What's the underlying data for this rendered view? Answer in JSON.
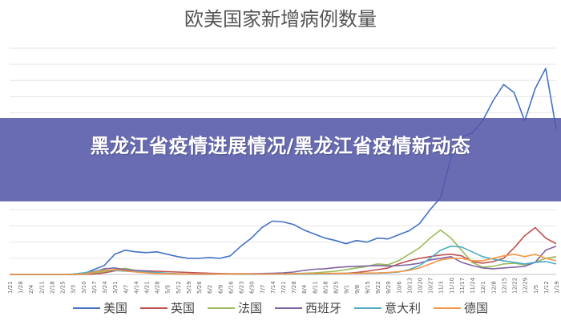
{
  "banner": {
    "text": "黑龙江省疫情进展情况/黑龙江省疫情新动态"
  },
  "chart_data": {
    "type": "line",
    "title": "欧美国家新增病例数量",
    "x": [
      "1/21",
      "1/28",
      "2/4",
      "2/11",
      "2/18",
      "2/25",
      "3/3",
      "3/10",
      "3/17",
      "3/24",
      "3/31",
      "4/7",
      "4/14",
      "4/21",
      "4/28",
      "5/5",
      "5/12",
      "5/19",
      "5/26",
      "6/2",
      "6/9",
      "6/16",
      "6/23",
      "6/30",
      "7/7",
      "7/14",
      "7/21",
      "7/28",
      "8/4",
      "8/11",
      "8/18",
      "8/25",
      "9/1",
      "9/8",
      "9/15",
      "9/22",
      "9/29",
      "10/6",
      "10/13",
      "10/20",
      "10/27",
      "11/3",
      "11/10",
      "11/17",
      "11/24",
      "12/1",
      "12/8",
      "12/15",
      "12/22",
      "12/29",
      "1/5",
      "1/12",
      "1/19"
    ],
    "series": [
      {
        "name": "美国",
        "color": "#4472C4",
        "values": [
          0,
          0,
          0,
          0,
          0,
          0,
          0,
          500,
          6000,
          11000,
          25000,
          30000,
          28000,
          27000,
          28000,
          25000,
          22000,
          20000,
          20000,
          21000,
          20000,
          23000,
          35000,
          45000,
          58000,
          66000,
          65000,
          62000,
          55000,
          50000,
          45000,
          42000,
          38000,
          42000,
          40000,
          45000,
          44000,
          49000,
          54000,
          63000,
          80000,
          95000,
          145000,
          170000,
          175000,
          190000,
          215000,
          235000,
          225000,
          190000,
          230000,
          255000,
          180000
        ]
      },
      {
        "name": "英国",
        "color": "#C0504D",
        "values": [
          0,
          0,
          0,
          0,
          0,
          0,
          0,
          0,
          500,
          2000,
          4500,
          5500,
          5000,
          4500,
          4000,
          3500,
          3000,
          2500,
          2000,
          1500,
          1200,
          1000,
          900,
          800,
          700,
          700,
          700,
          800,
          900,
          1000,
          1100,
          1200,
          1500,
          2500,
          4000,
          6000,
          8000,
          13000,
          17000,
          20000,
          22000,
          24000,
          25000,
          23000,
          16000,
          14000,
          16000,
          20000,
          33000,
          48000,
          58000,
          45000,
          38000
        ]
      },
      {
        "name": "法国",
        "color": "#9BBB59",
        "values": [
          0,
          0,
          0,
          0,
          0,
          0,
          0,
          200,
          2000,
          3500,
          6000,
          7500,
          5000,
          3000,
          2000,
          1200,
          800,
          500,
          300,
          400,
          500,
          600,
          500,
          600,
          700,
          800,
          1000,
          1200,
          1500,
          2000,
          3000,
          4000,
          6000,
          8000,
          10000,
          13000,
          12000,
          17000,
          25000,
          33000,
          45000,
          55000,
          45000,
          30000,
          15000,
          9000,
          10000,
          13000,
          14000,
          12000,
          15000,
          20000,
          22000
        ]
      },
      {
        "name": "西班牙",
        "color": "#8064A2",
        "values": [
          0,
          0,
          0,
          0,
          0,
          0,
          0,
          500,
          3000,
          7000,
          8000,
          6000,
          5000,
          4000,
          2000,
          1000,
          500,
          300,
          200,
          200,
          300,
          300,
          400,
          800,
          1200,
          1500,
          2000,
          3000,
          5000,
          6500,
          7000,
          8500,
          9500,
          10000,
          10500,
          11000,
          10500,
          11000,
          12000,
          14000,
          18000,
          20000,
          22000,
          15000,
          11000,
          8000,
          7000,
          8000,
          9000,
          10000,
          15000,
          30000,
          35000
        ]
      },
      {
        "name": "意大利",
        "color": "#4BACC6",
        "values": [
          0,
          0,
          0,
          0,
          0,
          0,
          500,
          2000,
          4000,
          5500,
          5000,
          4000,
          3500,
          3000,
          2500,
          1500,
          1000,
          700,
          500,
          400,
          300,
          250,
          200,
          200,
          250,
          250,
          300,
          350,
          400,
          500,
          800,
          1200,
          1400,
          1500,
          1600,
          1700,
          2000,
          3000,
          6000,
          11000,
          20000,
          30000,
          35000,
          34000,
          28000,
          22000,
          19000,
          17000,
          15000,
          13000,
          15000,
          16000,
          13000
        ]
      },
      {
        "name": "德国",
        "color": "#F79646",
        "values": [
          0,
          0,
          0,
          0,
          0,
          0,
          0,
          600,
          3000,
          5000,
          6000,
          4500,
          3000,
          2000,
          1200,
          800,
          700,
          600,
          500,
          500,
          400,
          500,
          600,
          500,
          500,
          500,
          600,
          800,
          1000,
          1200,
          1300,
          1400,
          1400,
          1500,
          1800,
          2000,
          2500,
          3500,
          5000,
          8000,
          13000,
          18000,
          20000,
          20000,
          17000,
          17000,
          20000,
          23000,
          25000,
          22000,
          25000,
          20000,
          17000
        ]
      }
    ],
    "ylim": [
      0,
      280000
    ],
    "grid": true,
    "legend": "bottom"
  }
}
